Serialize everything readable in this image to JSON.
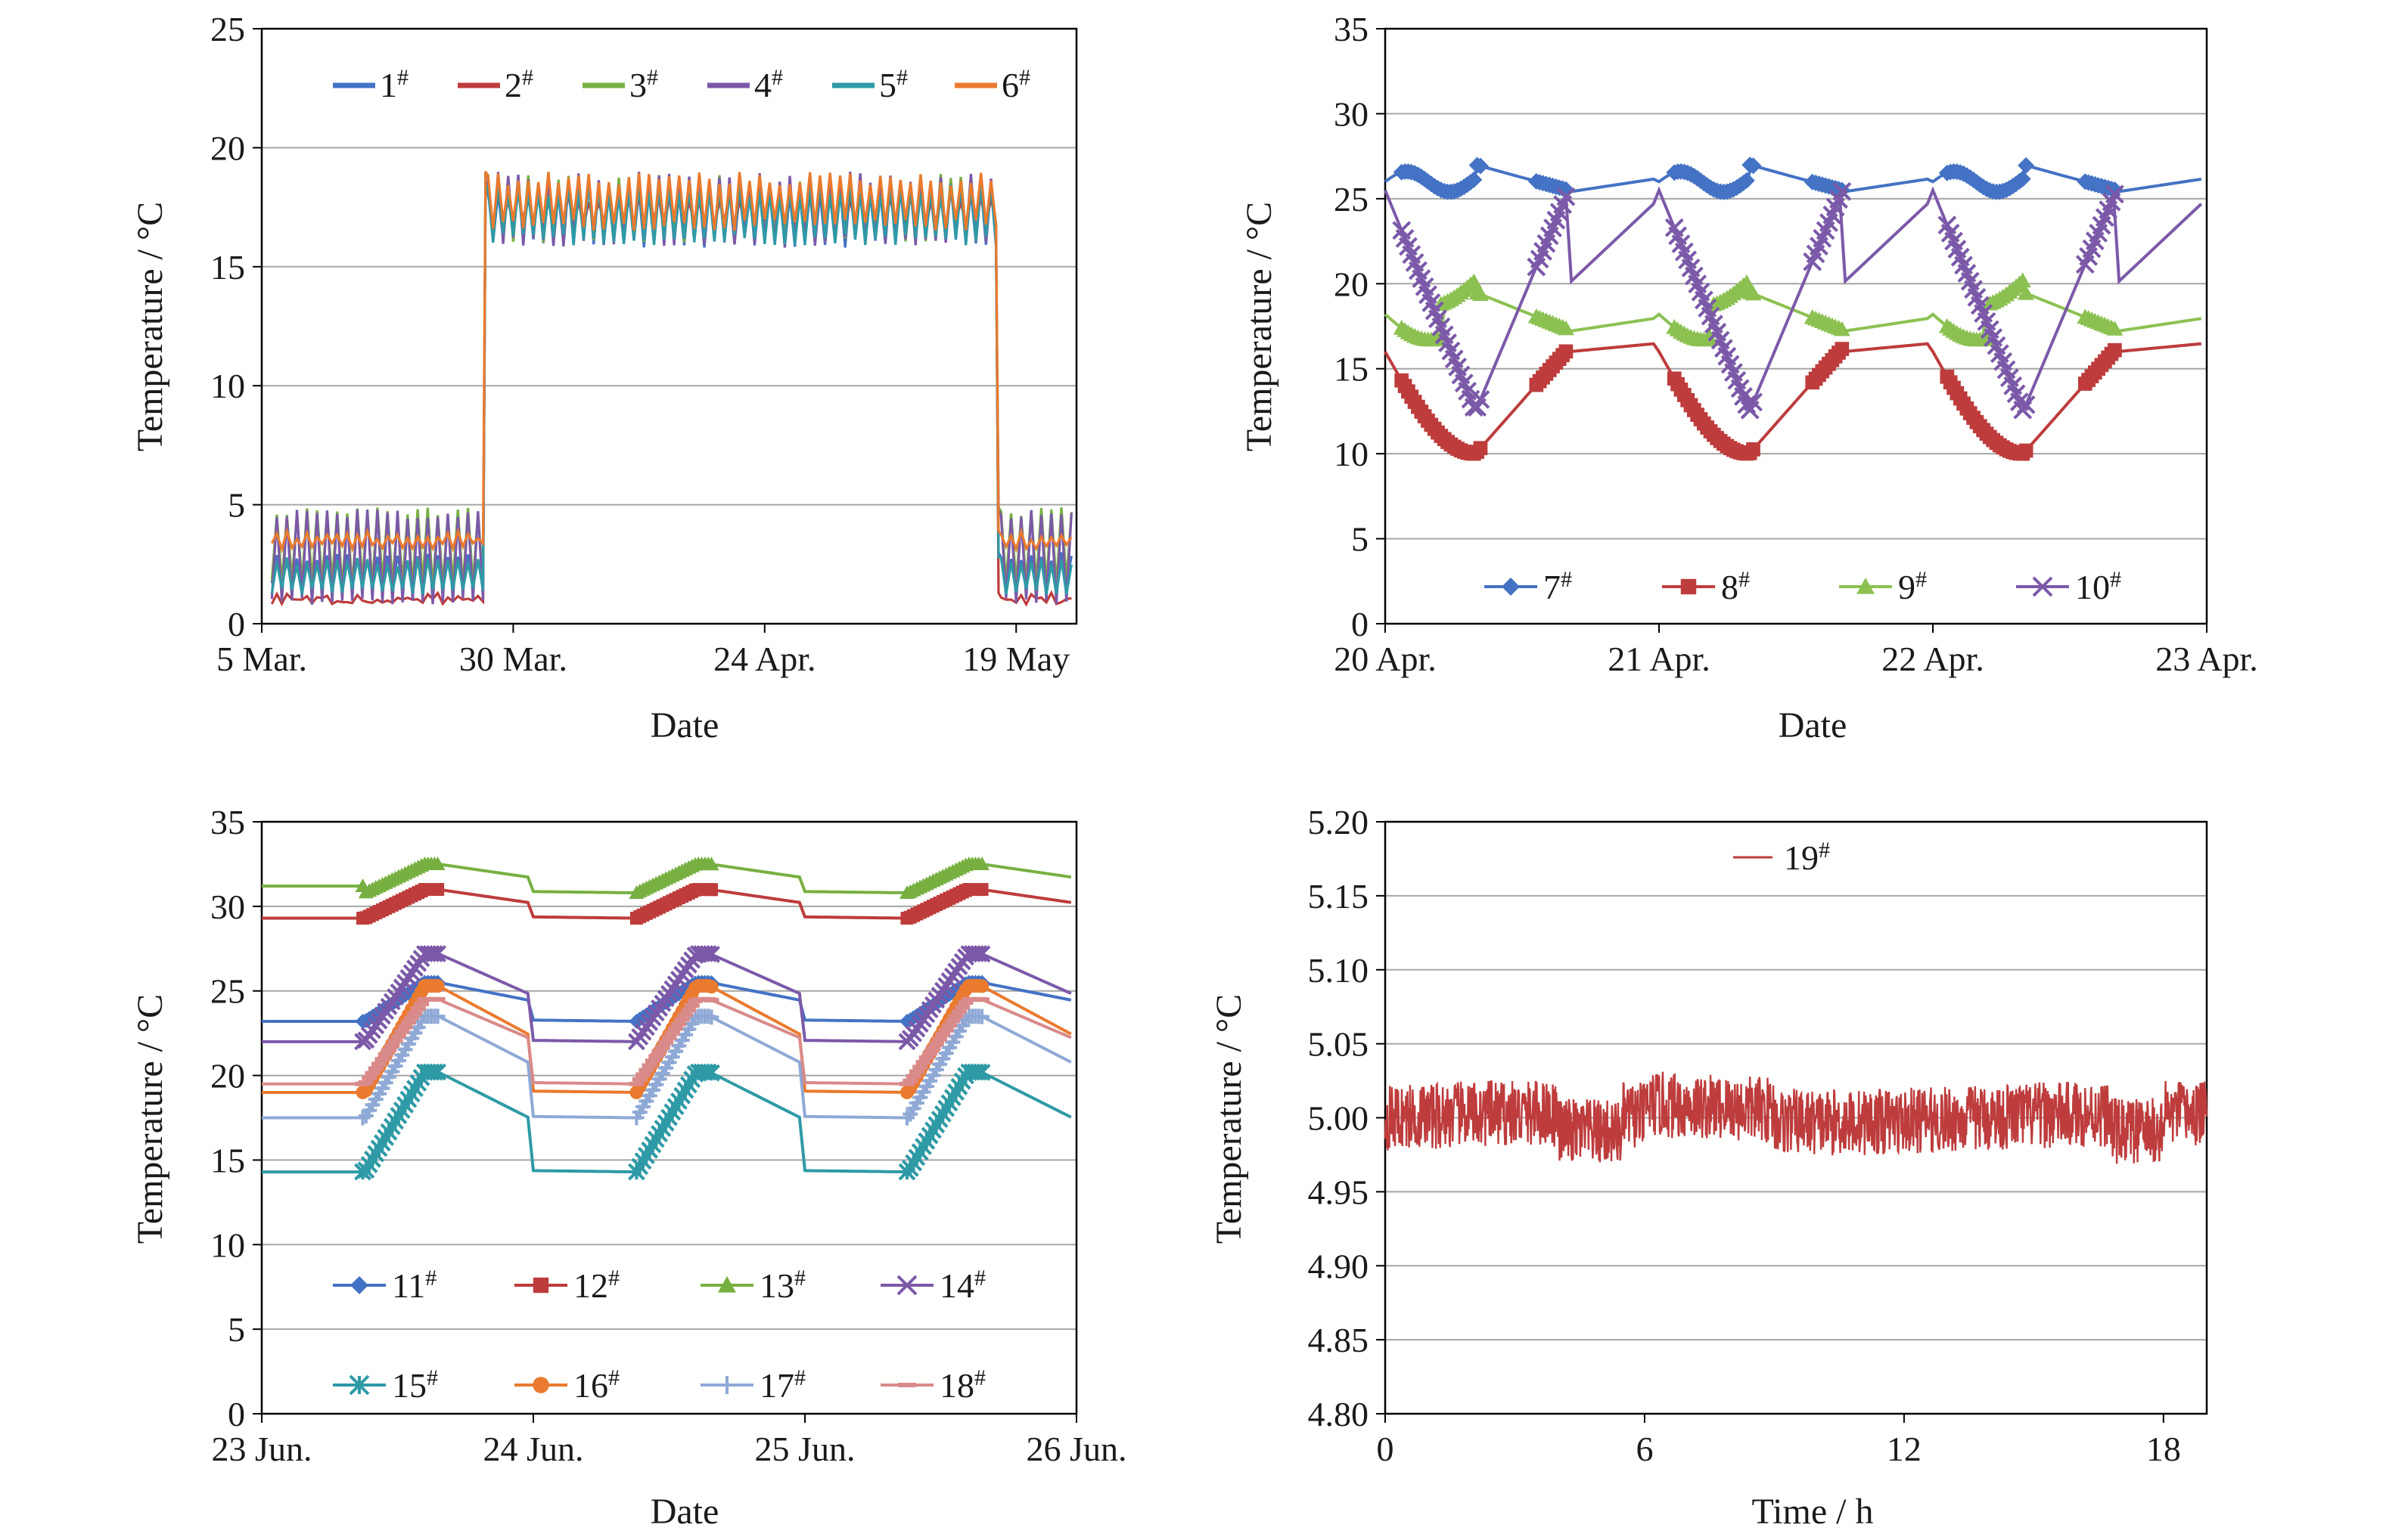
{
  "chart_data": [
    {
      "id": "a",
      "type": "line",
      "xlabel": "Date",
      "ylabel": "Temperature / °C",
      "ylim": [
        0,
        25
      ],
      "yticks": [
        0,
        5,
        10,
        15,
        20,
        25
      ],
      "xlim": [
        "5 Mar.",
        "25 May"
      ],
      "xticks": [
        "5 Mar.",
        "30 Mar.",
        "24 Apr.",
        "19 May"
      ],
      "grid": "horizontal",
      "legend_placement": "top",
      "series": [
        {
          "name": "1#",
          "color": "#4472c4",
          "low_phase": [
            1.5,
            3.0
          ],
          "heated_phase": [
            15.8,
            18.6
          ]
        },
        {
          "name": "2#",
          "color": "#be3c3c",
          "low_phase": [
            0.8,
            1.3
          ],
          "heated_phase": [
            16.5,
            18.3
          ]
        },
        {
          "name": "3#",
          "color": "#77b041",
          "low_phase": [
            1.5,
            4.9
          ],
          "heated_phase": [
            16.0,
            18.9
          ]
        },
        {
          "name": "4#",
          "color": "#7b59a8",
          "low_phase": [
            0.8,
            4.8
          ],
          "heated_phase": [
            15.8,
            19.0
          ]
        },
        {
          "name": "5#",
          "color": "#2e9aa6",
          "low_phase": [
            1.2,
            2.8
          ],
          "heated_phase": [
            15.9,
            18.5
          ]
        },
        {
          "name": "6#",
          "color": "#ea7a2e",
          "low_phase": [
            3.1,
            3.9
          ],
          "heated_phase": [
            16.5,
            19.0
          ]
        }
      ],
      "heating_period": [
        "27 Mar.",
        "17 May"
      ]
    },
    {
      "id": "b",
      "type": "line",
      "xlabel": "Date",
      "ylabel": "Temperature / °C",
      "ylim": [
        0,
        35
      ],
      "yticks": [
        0,
        5,
        10,
        15,
        20,
        25,
        30,
        35
      ],
      "xlim": [
        "20 Apr.",
        "23 Apr."
      ],
      "xticks": [
        "20 Apr.",
        "21 Apr.",
        "22 Apr.",
        "23 Apr."
      ],
      "grid": "horizontal",
      "legend_placement": "bottom",
      "series": [
        {
          "name": "7#",
          "color": "#4472c4",
          "marker": "diamond",
          "range": [
            25.3,
            27.3
          ]
        },
        {
          "name": "8#",
          "color": "#be3c3c",
          "marker": "square",
          "range": [
            10.0,
            16.5
          ]
        },
        {
          "name": "9#",
          "color": "#8cc152",
          "marker": "triangle",
          "range": [
            17.0,
            20.3
          ]
        },
        {
          "name": "10#",
          "color": "#7b59a8",
          "marker": "x",
          "range": [
            12.0,
            25.5
          ]
        }
      ]
    },
    {
      "id": "c",
      "type": "line",
      "xlabel": "Date",
      "ylabel": "Temperature / °C",
      "ylim": [
        0,
        35
      ],
      "yticks": [
        0,
        5,
        10,
        15,
        20,
        25,
        30,
        35
      ],
      "xlim": [
        "23 Jun.",
        "26 Jun."
      ],
      "xticks": [
        "23 Jun.",
        "24 Jun.",
        "25 Jun.",
        "26 Jun."
      ],
      "grid": "horizontal",
      "legend_placement": "bottom",
      "series": [
        {
          "name": "11#",
          "color": "#4472c4",
          "marker": "diamond",
          "range": [
            23.2,
            25.5
          ]
        },
        {
          "name": "12#",
          "color": "#be3c3c",
          "marker": "square",
          "range": [
            29.3,
            31.0
          ]
        },
        {
          "name": "13#",
          "color": "#77b041",
          "marker": "triangle",
          "range": [
            30.8,
            32.5
          ]
        },
        {
          "name": "14#",
          "color": "#7b59a8",
          "marker": "x",
          "range": [
            22.0,
            27.2
          ]
        },
        {
          "name": "15#",
          "color": "#2e9aa6",
          "marker": "star",
          "range": [
            14.3,
            20.2
          ]
        },
        {
          "name": "16#",
          "color": "#ea7a2e",
          "marker": "circle",
          "range": [
            19.0,
            25.3
          ]
        },
        {
          "name": "17#",
          "color": "#8fa9d6",
          "marker": "plus",
          "range": [
            17.5,
            23.5
          ]
        },
        {
          "name": "18#",
          "color": "#d98a8a",
          "marker": "dash",
          "range": [
            19.5,
            24.5
          ]
        }
      ]
    },
    {
      "id": "d",
      "type": "line",
      "xlabel": "Time / h",
      "ylabel": "Temperature / °C",
      "ylim": [
        4.8,
        5.2
      ],
      "yticks": [
        "4.80",
        "4.85",
        "4.90",
        "4.95",
        "5.00",
        "5.05",
        "5.10",
        "5.15",
        "5.20"
      ],
      "xlim": [
        0,
        19
      ],
      "xticks": [
        0,
        6,
        12,
        18
      ],
      "grid": "horizontal",
      "legend_placement": "top",
      "series": [
        {
          "name": "19#",
          "color": "#be3c3c",
          "mean": 5.0,
          "range": [
            4.95,
            5.035
          ]
        }
      ]
    }
  ]
}
